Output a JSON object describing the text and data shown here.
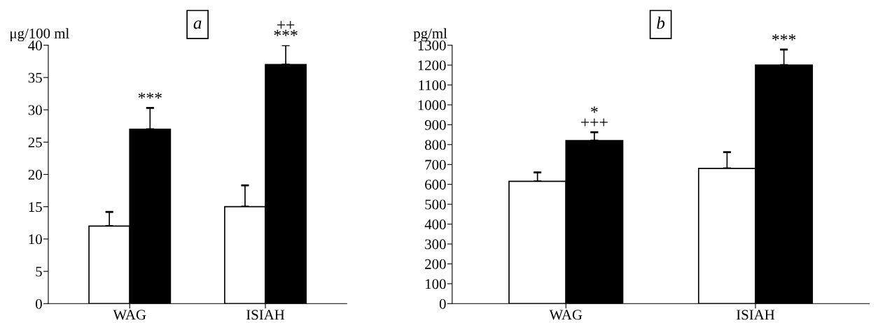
{
  "chart_data": [
    {
      "type": "bar",
      "title": "a",
      "ylabel": "μg/100 ml",
      "categories": [
        "WAG",
        "ISIAH"
      ],
      "ylim": [
        0,
        40
      ],
      "yticks": [
        0,
        5,
        10,
        15,
        20,
        25,
        30,
        35,
        40
      ],
      "grid": false,
      "series": [
        {
          "color": "#ffffff",
          "values": [
            12,
            15
          ],
          "errors": [
            [
              12,
              14.2
            ],
            [
              15,
              18.3
            ]
          ]
        },
        {
          "color": "#000000",
          "values": [
            27,
            37
          ],
          "errors": [
            [
              27,
              30.3
            ],
            [
              37,
              40
            ]
          ],
          "value_labels": [
            "***",
            "++\n***"
          ]
        }
      ]
    },
    {
      "type": "bar",
      "title": "b",
      "ylabel": "pg/ml",
      "categories": [
        "WAG",
        "ISIAH"
      ],
      "ylim": [
        0,
        1300
      ],
      "yticks": [
        0,
        100,
        200,
        300,
        400,
        500,
        600,
        700,
        800,
        900,
        1000,
        1100,
        1200,
        1300
      ],
      "grid": false,
      "series": [
        {
          "color": "#ffffff",
          "values": [
            615,
            680
          ],
          "errors": [
            [
              615,
              660
            ],
            [
              680,
              762
            ]
          ]
        },
        {
          "color": "#000000",
          "values": [
            820,
            1200
          ],
          "errors": [
            [
              820,
              862
            ],
            [
              1200,
              1278
            ]
          ],
          "value_labels": [
            "*\n+++",
            "***"
          ]
        }
      ]
    }
  ]
}
